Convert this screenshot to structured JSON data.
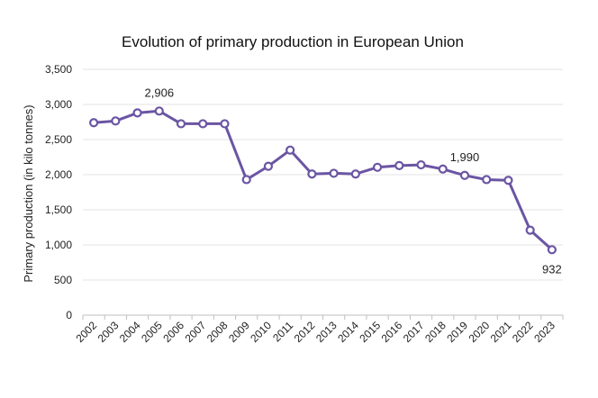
{
  "chart_data": {
    "type": "line",
    "title": "Evolution of primary production in European Union",
    "xlabel": "",
    "ylabel": "Primary production (in kilo tonnes)",
    "ylim": [
      0,
      3500
    ],
    "yticks": [
      0,
      500,
      1000,
      1500,
      2000,
      2500,
      3000,
      3500
    ],
    "ytick_labels": [
      "0",
      "500",
      "1,000",
      "1,500",
      "2,000",
      "2,500",
      "3,000",
      "3,500"
    ],
    "grid": true,
    "legend": "none",
    "line_color": "#6B55A3",
    "categories": [
      "2002",
      "2003",
      "2004",
      "2005",
      "2006",
      "2007",
      "2008",
      "2009",
      "2010",
      "2011",
      "2012",
      "2013",
      "2014",
      "2015",
      "2016",
      "2017",
      "2018",
      "2019",
      "2020",
      "2021",
      "2022",
      "2023"
    ],
    "series": [
      {
        "values": [
          2740,
          2765,
          2880,
          2906,
          2725,
          2725,
          2725,
          1930,
          2120,
          2350,
          2010,
          2020,
          2010,
          2105,
          2130,
          2140,
          2080,
          1990,
          1930,
          1920,
          1210,
          932
        ]
      }
    ],
    "annotations": [
      {
        "category": "2005",
        "text": "2,906",
        "position": "above"
      },
      {
        "category": "2019",
        "text": "1,990",
        "position": "above"
      },
      {
        "category": "2023",
        "text": "932",
        "position": "below"
      }
    ]
  }
}
